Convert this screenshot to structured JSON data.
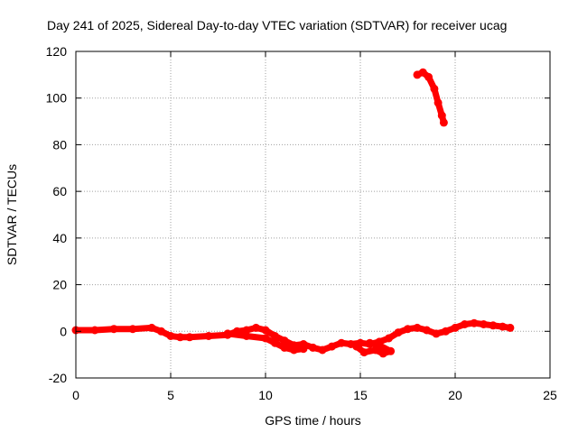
{
  "chart_data": {
    "type": "scatter",
    "title": "Day 241 of 2025, Sidereal Day-to-day VTEC variation (SDTVAR) for receiver ucag",
    "xlabel": "GPS time / hours",
    "ylabel": "SDTVAR / TECUs",
    "xlim": [
      0,
      25
    ],
    "ylim": [
      -20,
      120
    ],
    "xticks": [
      0,
      5,
      10,
      15,
      20,
      25
    ],
    "yticks": [
      -20,
      0,
      20,
      40,
      60,
      80,
      100,
      120
    ],
    "grid": true,
    "series": [
      {
        "name": "SDTVAR",
        "color": "#ff0000",
        "segments": [
          [
            [
              0.0,
              0.5
            ],
            [
              1.0,
              0.5
            ],
            [
              2.0,
              1.0
            ],
            [
              3.0,
              1.0
            ],
            [
              4.0,
              1.5
            ],
            [
              4.5,
              0.0
            ],
            [
              5.0,
              -2.0
            ],
            [
              5.5,
              -2.5
            ],
            [
              6.0,
              -2.5
            ],
            [
              7.0,
              -2.0
            ],
            [
              8.0,
              -1.5
            ],
            [
              8.5,
              0.0
            ],
            [
              9.0,
              0.5
            ],
            [
              9.5,
              1.5
            ],
            [
              10.0,
              0.5
            ],
            [
              10.5,
              -2.0
            ],
            [
              11.0,
              -4.0
            ],
            [
              11.5,
              -6.0
            ],
            [
              12.0,
              -5.5
            ],
            [
              12.5,
              -7.0
            ],
            [
              13.0,
              -8.0
            ],
            [
              13.5,
              -6.5
            ],
            [
              14.0,
              -5.0
            ],
            [
              14.5,
              -5.5
            ],
            [
              15.0,
              -5.0
            ],
            [
              15.5,
              -5.5
            ],
            [
              16.0,
              -4.5
            ],
            [
              16.5,
              -3.0
            ],
            [
              17.0,
              -0.5
            ],
            [
              17.5,
              1.0
            ],
            [
              18.0,
              1.5
            ],
            [
              18.5,
              0.5
            ],
            [
              19.0,
              -1.0
            ],
            [
              19.5,
              0.0
            ],
            [
              20.0,
              1.5
            ],
            [
              20.5,
              3.0
            ],
            [
              21.0,
              3.5
            ],
            [
              21.5,
              3.0
            ],
            [
              22.0,
              2.5
            ],
            [
              22.5,
              2.0
            ],
            [
              22.9,
              1.5
            ]
          ],
          [
            [
              8.0,
              -1.0
            ],
            [
              9.0,
              -2.0
            ],
            [
              10.0,
              -3.0
            ],
            [
              10.5,
              -5.0
            ],
            [
              11.0,
              -7.0
            ],
            [
              11.5,
              -8.0
            ],
            [
              12.0,
              -7.5
            ]
          ],
          [
            [
              14.8,
              -6.5
            ],
            [
              15.2,
              -9.0
            ],
            [
              15.8,
              -8.0
            ],
            [
              16.2,
              -9.5
            ],
            [
              16.6,
              -8.5
            ],
            [
              16.0,
              -6.0
            ],
            [
              15.5,
              -5.0
            ]
          ],
          [
            [
              18.0,
              110.0
            ],
            [
              18.3,
              111.0
            ],
            [
              18.6,
              109.0
            ],
            [
              18.9,
              104.0
            ],
            [
              19.1,
              98.0
            ],
            [
              19.3,
              92.5
            ],
            [
              19.4,
              89.5
            ]
          ]
        ]
      }
    ]
  }
}
